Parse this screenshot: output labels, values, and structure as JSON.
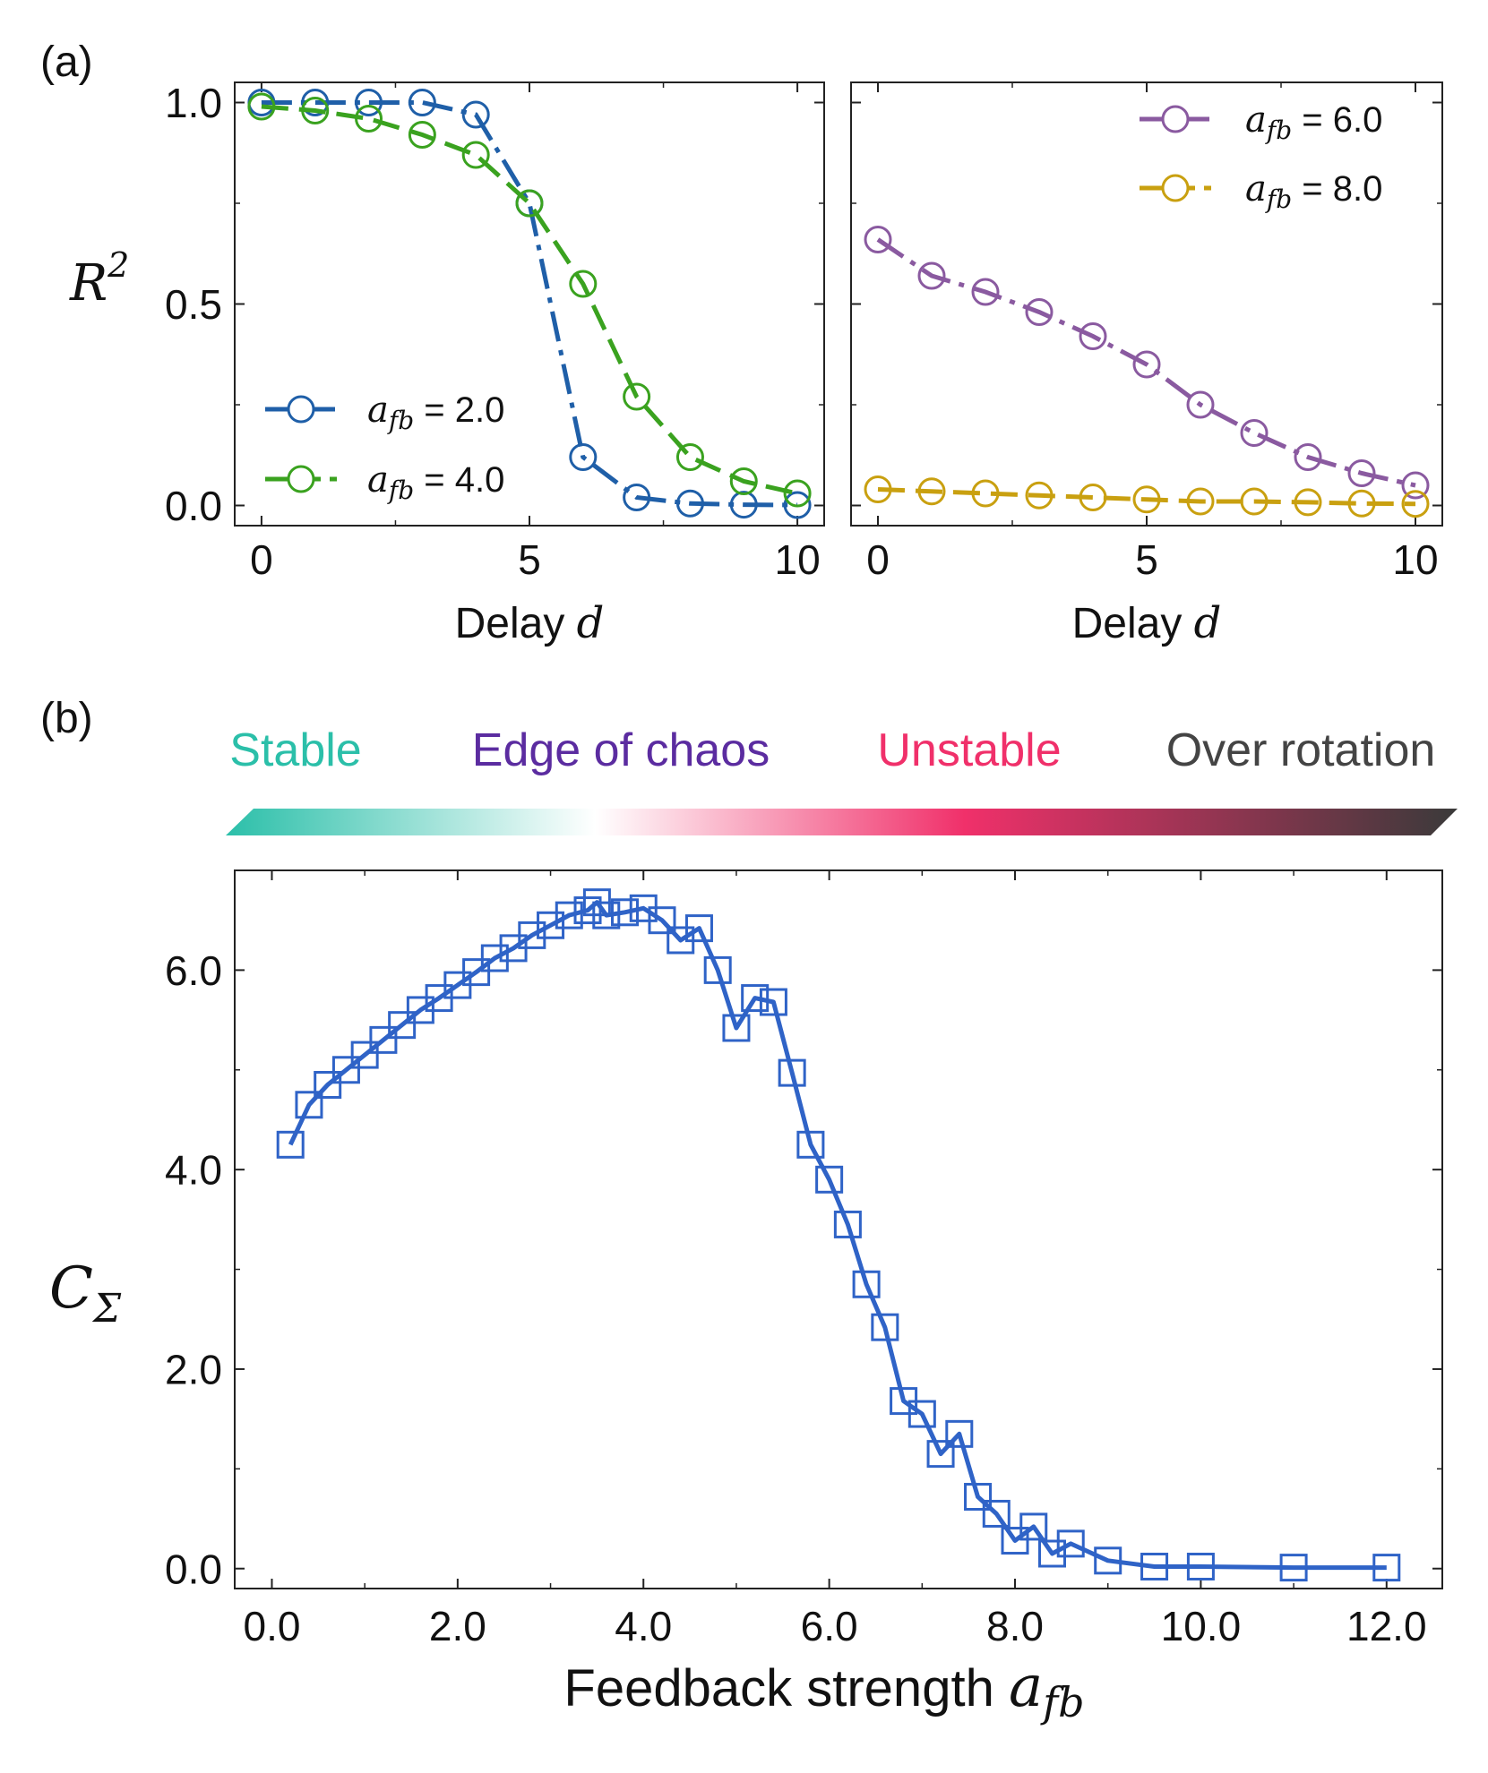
{
  "panels": {
    "a": {
      "label": "(a)"
    },
    "b": {
      "label": "(b)"
    }
  },
  "regimes": [
    {
      "name": "Stable",
      "color": "#2bbfa9"
    },
    {
      "name": "Edge of chaos",
      "color": "#5b2ca0"
    },
    {
      "name": "Unstable",
      "color": "#f0306a"
    },
    {
      "name": "Over rotation",
      "color": "#444444"
    }
  ],
  "gradient_stops": [
    "#2bbfa9",
    "#ffffff",
    "#f0306a",
    "#3a3a3a"
  ],
  "chart_data": [
    {
      "id": "a-left",
      "type": "line",
      "title": "",
      "xlabel": "Delay",
      "xlabel_var": "d",
      "ylabel_var": "R",
      "ylabel_sup": "2",
      "xlim": [
        -0.5,
        10.5
      ],
      "ylim": [
        -0.05,
        1.05
      ],
      "xticks": [
        0,
        5,
        10
      ],
      "xticklabels": [
        "0",
        "5",
        "10"
      ],
      "yticks": [
        0.0,
        0.5,
        1.0
      ],
      "yticklabels": [
        "0.0",
        "0.5",
        "1.0"
      ],
      "legend_position": "bottom-left",
      "x": [
        0,
        1,
        2,
        3,
        4,
        5,
        6,
        7,
        8,
        9,
        10
      ],
      "series": [
        {
          "name_var": "a",
          "name_sub": "fb",
          "name_val": "= 2.0",
          "color": "#1f5fa8",
          "dash": "dashdot",
          "values": [
            1.0,
            1.0,
            1.0,
            1.0,
            0.97,
            0.75,
            0.12,
            0.02,
            0.005,
            0.002,
            0.001
          ]
        },
        {
          "name_var": "a",
          "name_sub": "fb",
          "name_val": "= 4.0",
          "color": "#3aa21f",
          "dash": "dashed",
          "values": [
            0.99,
            0.98,
            0.96,
            0.92,
            0.87,
            0.75,
            0.55,
            0.27,
            0.12,
            0.06,
            0.03
          ]
        }
      ]
    },
    {
      "id": "a-right",
      "type": "line",
      "title": "",
      "xlabel": "Delay",
      "xlabel_var": "d",
      "xlim": [
        -0.5,
        10.5
      ],
      "ylim": [
        -0.05,
        1.05
      ],
      "xticks": [
        0,
        5,
        10
      ],
      "xticklabels": [
        "0",
        "5",
        "10"
      ],
      "legend_position": "top-right",
      "x": [
        0,
        1,
        2,
        3,
        4,
        5,
        6,
        7,
        8,
        9,
        10
      ],
      "series": [
        {
          "name_var": "a",
          "name_sub": "fb",
          "name_val": "= 6.0",
          "color": "#8a5aa0",
          "dash": "dashdot",
          "values": [
            0.66,
            0.57,
            0.53,
            0.48,
            0.42,
            0.35,
            0.25,
            0.18,
            0.12,
            0.08,
            0.05
          ]
        },
        {
          "name_var": "a",
          "name_sub": "fb",
          "name_val": "= 8.0",
          "color": "#c9a010",
          "dash": "dashed",
          "values": [
            0.04,
            0.035,
            0.03,
            0.025,
            0.02,
            0.015,
            0.01,
            0.01,
            0.008,
            0.005,
            0.004
          ]
        }
      ]
    },
    {
      "id": "b",
      "type": "line",
      "title": "",
      "xlabel": "Feedback strength",
      "xlabel_var": "a",
      "xlabel_sub": "fb",
      "ylabel_var": "C",
      "ylabel_sub": "Σ",
      "xlim": [
        -0.4,
        12.6
      ],
      "ylim": [
        -0.2,
        7.0
      ],
      "xticks": [
        0,
        2,
        4,
        6,
        8,
        10,
        12
      ],
      "xticklabels": [
        "0.0",
        "2.0",
        "4.0",
        "6.0",
        "8.0",
        "10.0",
        "12.0"
      ],
      "yticks": [
        0,
        2,
        4,
        6
      ],
      "yticklabels": [
        "0.0",
        "2.0",
        "4.0",
        "6.0"
      ],
      "series": [
        {
          "name": "C_sigma",
          "color": "#2f63c7",
          "x": [
            0.2,
            0.4,
            0.6,
            0.8,
            1.0,
            1.2,
            1.4,
            1.6,
            1.8,
            2.0,
            2.2,
            2.4,
            2.6,
            2.8,
            3.0,
            3.2,
            3.4,
            3.5,
            3.6,
            3.8,
            4.0,
            4.2,
            4.4,
            4.6,
            4.8,
            5.0,
            5.2,
            5.4,
            5.6,
            5.8,
            6.0,
            6.2,
            6.4,
            6.6,
            6.8,
            7.0,
            7.2,
            7.4,
            7.6,
            7.8,
            8.0,
            8.2,
            8.4,
            8.6,
            9.0,
            9.5,
            10.0,
            11.0,
            12.0
          ],
          "values": [
            4.25,
            4.65,
            4.85,
            5.0,
            5.15,
            5.3,
            5.45,
            5.6,
            5.72,
            5.85,
            5.98,
            6.12,
            6.22,
            6.35,
            6.45,
            6.55,
            6.6,
            6.68,
            6.55,
            6.58,
            6.62,
            6.5,
            6.3,
            6.42,
            6.0,
            5.42,
            5.72,
            5.68,
            4.97,
            4.25,
            3.9,
            3.45,
            2.85,
            2.42,
            1.68,
            1.55,
            1.15,
            1.35,
            0.72,
            0.55,
            0.28,
            0.42,
            0.15,
            0.25,
            0.08,
            0.02,
            0.02,
            0.01,
            0.01
          ]
        }
      ]
    }
  ]
}
